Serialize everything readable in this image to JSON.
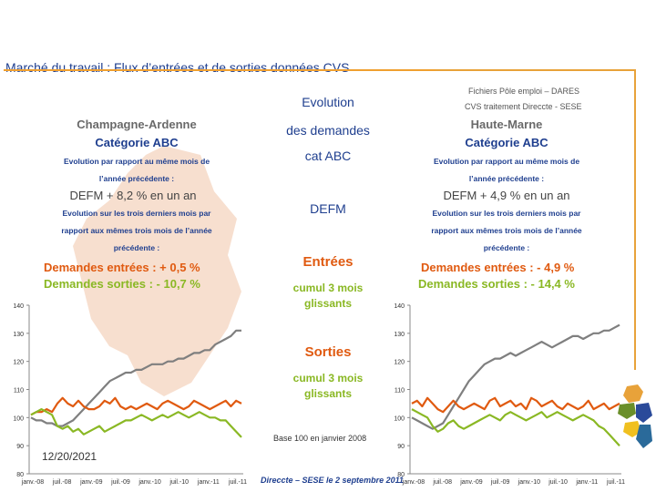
{
  "header": {
    "title": "Marché du travail : Flux d’entrées et de sorties données CVS",
    "source_line1": "Fichiers Pôle emploi – DARES",
    "source_line2": "CVS traitement Direccte - SESE"
  },
  "center": {
    "evolution": "Evolution",
    "des_demandes": "des  demandes",
    "cat_abc": "cat ABC",
    "defm": "DEFM",
    "entrees": "Entrées",
    "entrees_sub1": "cumul 3 mois",
    "entrees_sub2": "glissants",
    "sorties": "Sorties",
    "sorties_sub1": "cumul 3 mois",
    "sorties_sub2": "glissants",
    "base": "Base 100 en janvier 2008"
  },
  "left_panel": {
    "region": "Champagne-Ardenne",
    "category": "Catégorie ABC",
    "note1": "Evolution par rapport au même mois de",
    "note2": "l’année précédente :",
    "defm": "DEFM +  8,2 % en un an",
    "note3": "Evolution sur les trois derniers mois par",
    "note4": "rapport aux mêmes trois mois de l’année",
    "note5": "précédente :",
    "entrees": "Demandes entrées : +  0,5 %",
    "sorties": "Demandes sorties : -  10,7 %"
  },
  "right_panel": {
    "region": "Haute-Marne",
    "category": "Catégorie ABC",
    "note1": "Evolution par rapport au même mois de",
    "note2": "l’année précédente :",
    "defm": "DEFM +  4,9 % en un an",
    "note3": "Evolution sur les trois derniers mois par",
    "note4": "rapport aux mêmes trois mois de l’année",
    "note5": "précédente :",
    "entrees": "Demandes entrées : -  4,9 %",
    "sorties": "Demandes sorties : -  14,4 %"
  },
  "footer": {
    "date": "12/20/2021",
    "credit": "Direccte – SESE le 2 septembre 2011"
  },
  "colors": {
    "defm": "#7f7f7f",
    "entrees": "#e05a10",
    "sorties": "#8ab824",
    "accent": "#e8a23a",
    "title": "#1f3f8f"
  },
  "chart_data": [
    {
      "type": "line",
      "title": "Champagne-Ardenne",
      "ylim": [
        80,
        140
      ],
      "yticks": [
        "80",
        "90",
        "100",
        "110",
        "120",
        "130",
        "140"
      ],
      "x_tick_labels": [
        "janv.-08",
        "juil.-08",
        "janv.-09",
        "juil.-09",
        "janv.-10",
        "juil.-10",
        "janv.-11",
        "juil.-11"
      ],
      "series": [
        {
          "name": "DEFM",
          "color": "#7f7f7f",
          "values": [
            100,
            99,
            99,
            98,
            98,
            97,
            97,
            98,
            99,
            101,
            103,
            105,
            107,
            109,
            111,
            113,
            114,
            115,
            116,
            116,
            117,
            117,
            118,
            119,
            119,
            119,
            120,
            120,
            121,
            121,
            122,
            123,
            123,
            124,
            124,
            126,
            127,
            128,
            129,
            131,
            131
          ]
        },
        {
          "name": "Entrées",
          "color": "#e05a10",
          "values": [
            101,
            102,
            102,
            103,
            102,
            105,
            107,
            105,
            104,
            106,
            104,
            103,
            103,
            104,
            106,
            105,
            107,
            104,
            103,
            104,
            103,
            104,
            105,
            104,
            103,
            105,
            106,
            105,
            104,
            103,
            104,
            106,
            105,
            104,
            103,
            104,
            105,
            106,
            104,
            106,
            105
          ]
        },
        {
          "name": "Sorties",
          "color": "#8ab824",
          "values": [
            101,
            102,
            103,
            102,
            101,
            97,
            96,
            97,
            95,
            96,
            94,
            95,
            96,
            97,
            95,
            96,
            97,
            98,
            99,
            99,
            100,
            101,
            100,
            99,
            100,
            101,
            100,
            101,
            102,
            101,
            100,
            101,
            102,
            101,
            100,
            100,
            99,
            99,
            97,
            95,
            93
          ]
        }
      ]
    },
    {
      "type": "line",
      "title": "Haute-Marne",
      "ylim": [
        80,
        140
      ],
      "yticks": [
        "80",
        "90",
        "100",
        "110",
        "120",
        "130",
        "140"
      ],
      "x_tick_labels": [
        "janv.-08",
        "juil.-08",
        "janv.-09",
        "juil.-09",
        "janv.-10",
        "juil.-10",
        "janv.-11",
        "juil.-11"
      ],
      "series": [
        {
          "name": "DEFM",
          "color": "#7f7f7f",
          "values": [
            100,
            99,
            98,
            97,
            96,
            97,
            98,
            101,
            104,
            107,
            110,
            113,
            115,
            117,
            119,
            120,
            121,
            121,
            122,
            123,
            122,
            123,
            124,
            125,
            126,
            127,
            126,
            125,
            126,
            127,
            128,
            129,
            129,
            128,
            129,
            130,
            130,
            131,
            131,
            132,
            133
          ]
        },
        {
          "name": "Entrées",
          "color": "#e05a10",
          "values": [
            105,
            106,
            104,
            107,
            105,
            103,
            102,
            104,
            106,
            104,
            103,
            104,
            105,
            104,
            103,
            106,
            107,
            104,
            105,
            106,
            104,
            105,
            103,
            107,
            106,
            104,
            105,
            106,
            104,
            103,
            105,
            104,
            103,
            104,
            106,
            103,
            104,
            105,
            103,
            104,
            105
          ]
        },
        {
          "name": "Sorties",
          "color": "#8ab824",
          "values": [
            103,
            102,
            101,
            100,
            97,
            95,
            96,
            98,
            99,
            97,
            96,
            97,
            98,
            99,
            100,
            101,
            100,
            99,
            101,
            102,
            101,
            100,
            99,
            100,
            101,
            102,
            100,
            101,
            102,
            101,
            100,
            99,
            100,
            101,
            100,
            99,
            97,
            96,
            94,
            92,
            90
          ]
        }
      ]
    }
  ]
}
